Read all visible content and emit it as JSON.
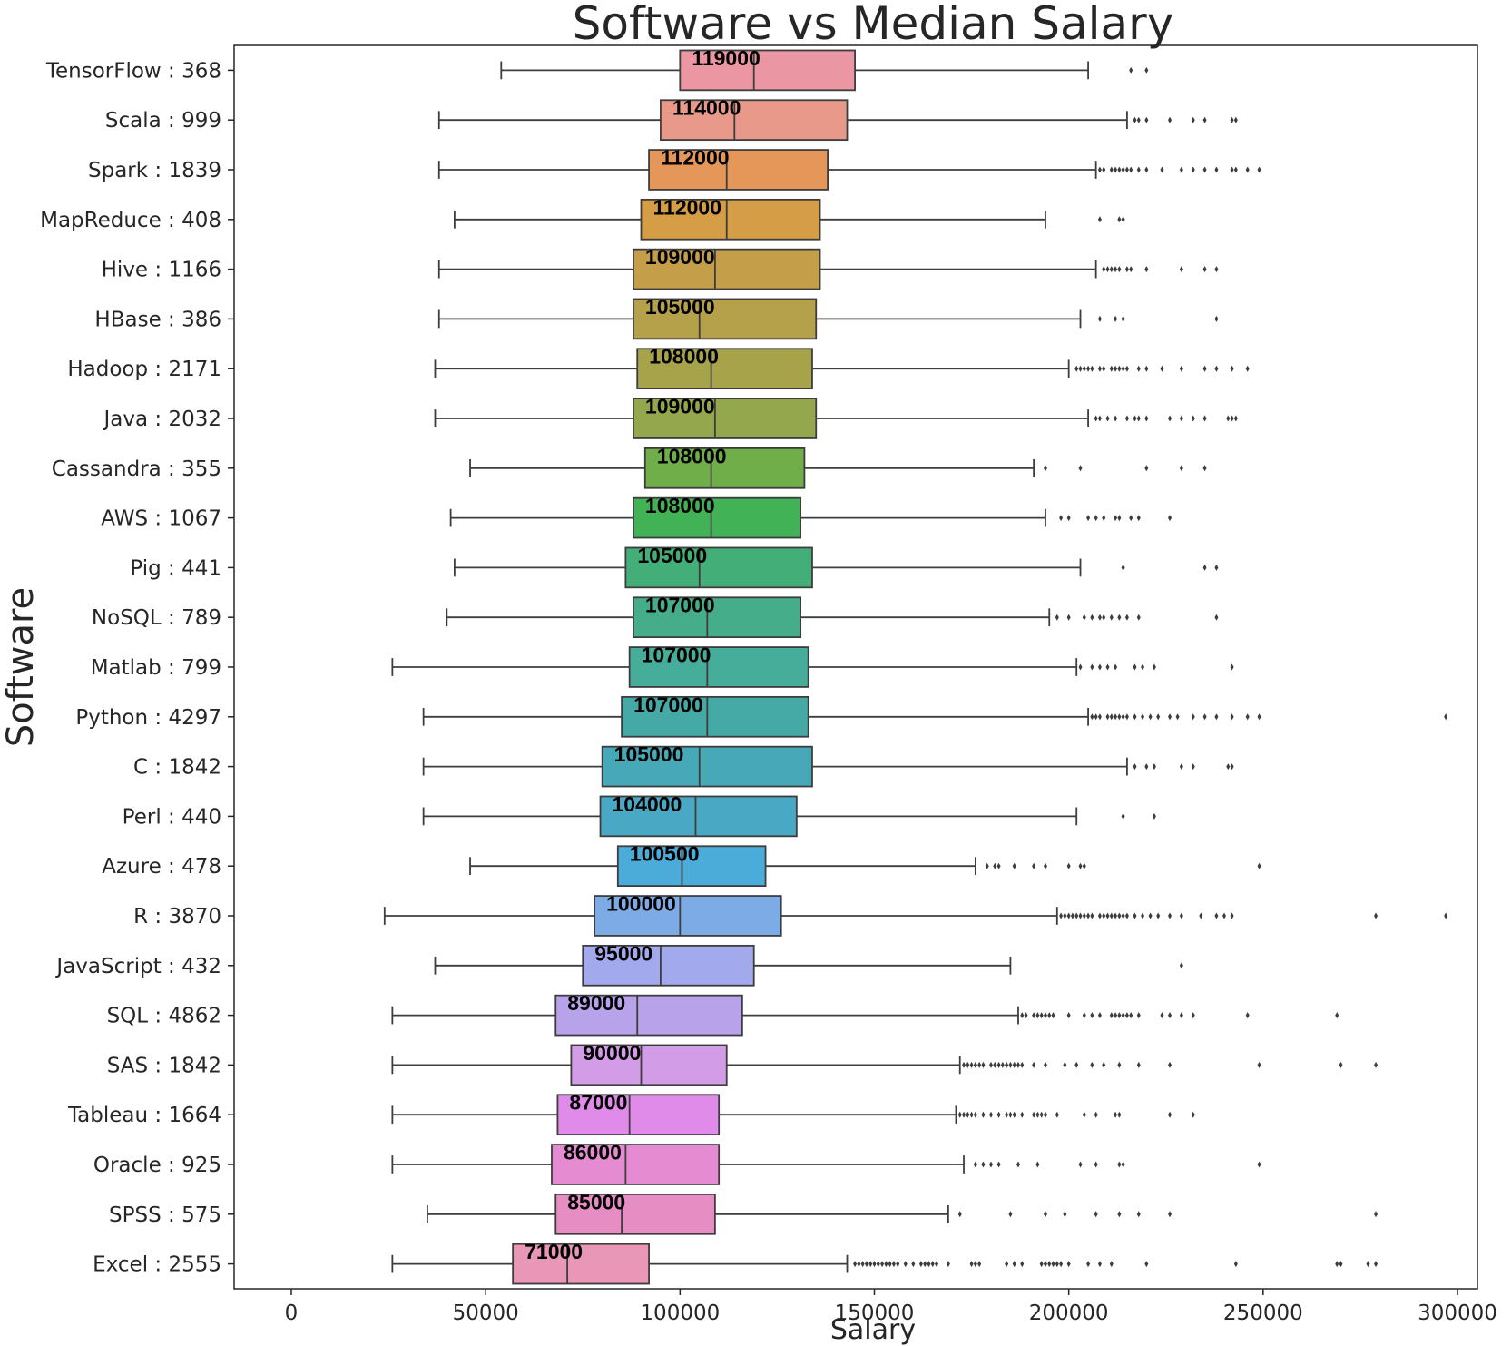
{
  "chart_data": {
    "type": "box",
    "orientation": "horizontal",
    "title": "Software vs Median Salary",
    "xlabel": "Salary",
    "ylabel": "Software",
    "xlim": [
      -15000,
      312000
    ],
    "xticks": [
      0,
      50000,
      100000,
      150000,
      200000,
      250000,
      300000
    ],
    "xtick_labels": [
      "0",
      "50000",
      "100000",
      "150000",
      "200000",
      "250000",
      "300000"
    ],
    "grid": false,
    "series": [
      {
        "label": "TensorFlow : 368",
        "color": "#ea96a3",
        "whisker_low": 54000,
        "q1": 100000,
        "median": 119000,
        "q3": 145000,
        "whisker_high": 205000,
        "median_label": "119000",
        "outliers": [
          216000,
          220000
        ]
      },
      {
        "label": "Scala : 999",
        "color": "#e8998a",
        "whisker_low": 38000,
        "q1": 95000,
        "median": 114000,
        "q3": 143000,
        "whisker_high": 215000,
        "median_label": "114000",
        "outliers": [
          217000,
          218000,
          220000,
          226000,
          232000,
          235000,
          242000,
          243000
        ]
      },
      {
        "label": "Spark : 1839",
        "color": "#e5975a",
        "whisker_low": 38000,
        "q1": 92000,
        "median": 112000,
        "q3": 138000,
        "whisker_high": 207000,
        "median_label": "112000",
        "outliers": [
          208000,
          209000,
          211000,
          212000,
          213000,
          214000,
          215000,
          216000,
          218000,
          220000,
          224000,
          229000,
          232000,
          235000,
          238000,
          242000,
          243000,
          246000,
          249000
        ]
      },
      {
        "label": "MapReduce : 408",
        "color": "#d49d46",
        "whisker_low": 42000,
        "q1": 90000,
        "median": 112000,
        "q3": 136000,
        "whisker_high": 194000,
        "median_label": "112000",
        "outliers": [
          208000,
          213000,
          214000
        ]
      },
      {
        "label": "Hive : 1166",
        "color": "#c49e48",
        "whisker_low": 38000,
        "q1": 88000,
        "median": 109000,
        "q3": 136000,
        "whisker_high": 207000,
        "median_label": "109000",
        "outliers": [
          209000,
          210000,
          211000,
          212000,
          213000,
          215000,
          216000,
          220000,
          229000,
          235000,
          238000
        ]
      },
      {
        "label": "HBase : 386",
        "color": "#b5a14a",
        "whisker_low": 38000,
        "q1": 88000,
        "median": 105000,
        "q3": 135000,
        "whisker_high": 203000,
        "median_label": "105000",
        "outliers": [
          208000,
          212000,
          214000,
          238000
        ]
      },
      {
        "label": "Hadoop : 2171",
        "color": "#a6a34b",
        "whisker_low": 37000,
        "q1": 89000,
        "median": 108000,
        "q3": 134000,
        "whisker_high": 200000,
        "median_label": "108000",
        "outliers": [
          202000,
          203000,
          204000,
          205000,
          206000,
          208000,
          209000,
          211000,
          212000,
          213000,
          214000,
          215000,
          218000,
          220000,
          224000,
          229000,
          235000,
          238000,
          242000,
          246000
        ]
      },
      {
        "label": "Java : 2032",
        "color": "#94a74c",
        "whisker_low": 37000,
        "q1": 88000,
        "median": 109000,
        "q3": 135000,
        "whisker_high": 205000,
        "median_label": "109000",
        "outliers": [
          207000,
          208000,
          210000,
          212000,
          215000,
          217000,
          218000,
          220000,
          226000,
          229000,
          232000,
          235000,
          241000,
          242000,
          243000
        ]
      },
      {
        "label": "Cassandra : 355",
        "color": "#6fae48",
        "whisker_low": 46000,
        "q1": 91000,
        "median": 108000,
        "q3": 132000,
        "whisker_high": 191000,
        "median_label": "108000",
        "outliers": [
          194000,
          203000,
          220000,
          229000,
          235000
        ]
      },
      {
        "label": "AWS : 1067",
        "color": "#41b356",
        "whisker_low": 41000,
        "q1": 88000,
        "median": 108000,
        "q3": 131000,
        "whisker_high": 194000,
        "median_label": "108000",
        "outliers": [
          198000,
          200000,
          205000,
          207000,
          209000,
          212000,
          213000,
          216000,
          218000,
          226000
        ]
      },
      {
        "label": "Pig : 441",
        "color": "#44ae78",
        "whisker_low": 42000,
        "q1": 86000,
        "median": 105000,
        "q3": 134000,
        "whisker_high": 203000,
        "median_label": "105000",
        "outliers": [
          214000,
          235000,
          238000
        ]
      },
      {
        "label": "NoSQL : 789",
        "color": "#45ad8a",
        "whisker_low": 40000,
        "q1": 88000,
        "median": 107000,
        "q3": 131000,
        "whisker_high": 195000,
        "median_label": "107000",
        "outliers": [
          197000,
          200000,
          204000,
          206000,
          208000,
          209000,
          211000,
          213000,
          215000,
          218000,
          238000
        ]
      },
      {
        "label": "Matlab : 799",
        "color": "#45ad9a",
        "whisker_low": 26000,
        "q1": 87000,
        "median": 107000,
        "q3": 133000,
        "whisker_high": 202000,
        "median_label": "107000",
        "outliers": [
          203000,
          206000,
          208000,
          210000,
          212000,
          217000,
          219000,
          222000,
          242000
        ]
      },
      {
        "label": "Python : 4297",
        "color": "#45aaa5",
        "whisker_low": 34000,
        "q1": 85000,
        "median": 107000,
        "q3": 133000,
        "whisker_high": 205000,
        "median_label": "107000",
        "outliers": [
          206000,
          207000,
          208000,
          210000,
          211000,
          212000,
          213000,
          214000,
          215000,
          217000,
          219000,
          221000,
          223000,
          226000,
          228000,
          232000,
          235000,
          238000,
          242000,
          246000,
          249000,
          297000
        ]
      },
      {
        "label": "C : 1842",
        "color": "#47a8b8",
        "whisker_low": 34000,
        "q1": 80000,
        "median": 105000,
        "q3": 134000,
        "whisker_high": 215000,
        "median_label": "105000",
        "outliers": [
          217000,
          220000,
          222000,
          229000,
          232000,
          241000,
          242000
        ]
      },
      {
        "label": "Perl : 440",
        "color": "#49a9c4",
        "whisker_low": 34000,
        "q1": 79500,
        "median": 104000,
        "q3": 130000,
        "whisker_high": 202000,
        "median_label": "104000",
        "outliers": [
          214000,
          222000
        ]
      },
      {
        "label": "Azure : 478",
        "color": "#4babd9",
        "whisker_low": 46000,
        "q1": 84000,
        "median": 100500,
        "q3": 122000,
        "whisker_high": 176000,
        "median_label": "100500",
        "outliers": [
          179000,
          181000,
          182000,
          186000,
          191000,
          194000,
          200000,
          203000,
          204000,
          249000
        ]
      },
      {
        "label": "R : 3870",
        "color": "#7dabe6",
        "whisker_low": 24000,
        "q1": 78000,
        "median": 100000,
        "q3": 126000,
        "whisker_high": 197000,
        "median_label": "100000",
        "outliers": [
          198000,
          199000,
          200000,
          201000,
          202000,
          203000,
          204000,
          205000,
          206000,
          208000,
          209000,
          210000,
          211000,
          212000,
          213000,
          214000,
          215000,
          217000,
          219000,
          221000,
          223000,
          226000,
          229000,
          234000,
          238000,
          240000,
          242000,
          279000,
          297000
        ]
      },
      {
        "label": "JavaScript : 432",
        "color": "#a2a9ec",
        "whisker_low": 37000,
        "q1": 75000,
        "median": 95000,
        "q3": 119000,
        "whisker_high": 185000,
        "median_label": "95000",
        "outliers": [
          229000
        ]
      },
      {
        "label": "SQL : 4862",
        "color": "#b8a2ea",
        "whisker_low": 26000,
        "q1": 68000,
        "median": 89000,
        "q3": 116000,
        "whisker_high": 187000,
        "median_label": "89000",
        "outliers": [
          188000,
          189000,
          191000,
          192000,
          193000,
          194000,
          195000,
          196000,
          200000,
          204000,
          206000,
          208000,
          211000,
          212000,
          213000,
          214000,
          215000,
          216000,
          218000,
          224000,
          226000,
          229000,
          232000,
          246000,
          269000
        ]
      },
      {
        "label": "SAS : 1842",
        "color": "#d29ce6",
        "whisker_low": 26000,
        "q1": 72000,
        "median": 90000,
        "q3": 112000,
        "whisker_high": 172000,
        "median_label": "90000",
        "outliers": [
          173000,
          174000,
          175000,
          176000,
          177000,
          178000,
          180000,
          181000,
          182000,
          183000,
          184000,
          185000,
          186000,
          187000,
          188000,
          191000,
          194000,
          199000,
          202000,
          206000,
          209000,
          213000,
          218000,
          226000,
          249000,
          270000,
          279000
        ]
      },
      {
        "label": "Tableau : 1664",
        "color": "#e08be9",
        "whisker_low": 26000,
        "q1": 68500,
        "median": 87000,
        "q3": 110000,
        "whisker_high": 171000,
        "median_label": "87000",
        "outliers": [
          172000,
          173000,
          174000,
          175000,
          176000,
          178000,
          180000,
          182000,
          184000,
          185000,
          186000,
          188000,
          191000,
          192000,
          193000,
          194000,
          197000,
          204000,
          207000,
          212000,
          213000,
          226000,
          232000
        ]
      },
      {
        "label": "Oracle : 925",
        "color": "#e48bd2",
        "whisker_low": 26000,
        "q1": 67000,
        "median": 86000,
        "q3": 110000,
        "whisker_high": 173000,
        "median_label": "86000",
        "outliers": [
          176000,
          178000,
          180000,
          182000,
          187000,
          192000,
          203000,
          207000,
          213000,
          214000,
          249000
        ]
      },
      {
        "label": "SPSS : 575",
        "color": "#e68ec3",
        "whisker_low": 35000,
        "q1": 68000,
        "median": 85000,
        "q3": 109000,
        "whisker_high": 169000,
        "median_label": "85000",
        "outliers": [
          172000,
          185000,
          194000,
          199000,
          207000,
          213000,
          218000,
          226000,
          279000
        ]
      },
      {
        "label": "Excel : 2555",
        "color": "#e897b7",
        "whisker_low": 26000,
        "q1": 57000,
        "median": 71000,
        "q3": 92000,
        "whisker_high": 143000,
        "median_label": "71000",
        "outliers": [
          145000,
          146000,
          147000,
          148000,
          149000,
          150000,
          151000,
          152000,
          153000,
          154000,
          155000,
          156000,
          158000,
          160000,
          162000,
          163000,
          164000,
          165000,
          166000,
          169000,
          175000,
          176000,
          177000,
          184000,
          186000,
          188000,
          193000,
          194000,
          195000,
          196000,
          197000,
          198000,
          200000,
          205000,
          208000,
          211000,
          220000,
          243000,
          269000,
          270000,
          277000,
          279000
        ]
      }
    ]
  }
}
